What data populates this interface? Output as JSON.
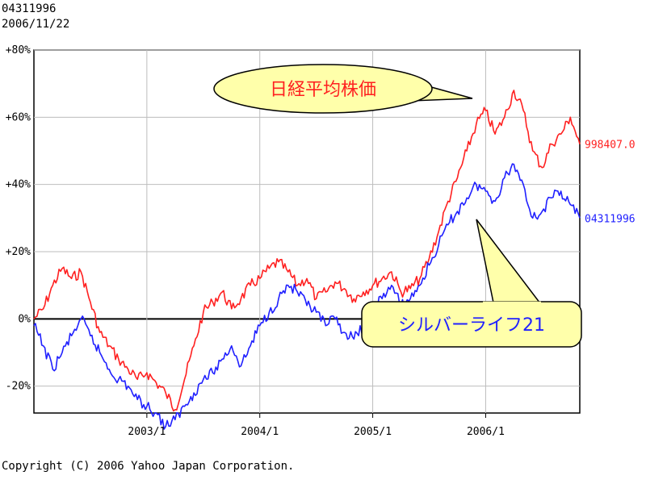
{
  "header": {
    "code": "04311996",
    "date": "2006/11/22"
  },
  "copyright": "Copyright (C) 2006 Yahoo Japan Corporation.",
  "chart_data": {
    "type": "line",
    "title": "",
    "xlabel": "",
    "ylabel": "",
    "ylim": [
      -28,
      80
    ],
    "y_ticks": [
      {
        "value": 80,
        "label": "+80%"
      },
      {
        "value": 60,
        "label": "+60%"
      },
      {
        "value": 40,
        "label": "+40%"
      },
      {
        "value": 20,
        "label": "+20%"
      },
      {
        "value": 0,
        "label": "0%"
      },
      {
        "value": -20,
        "label": "-20%"
      }
    ],
    "xlim": [
      "2002-01",
      "2006-11"
    ],
    "x_ticks": [
      {
        "value": "2003-01",
        "label": "2003/1"
      },
      {
        "value": "2004-01",
        "label": "2004/1"
      },
      {
        "value": "2005-01",
        "label": "2005/1"
      },
      {
        "value": "2006-01",
        "label": "2006/1"
      }
    ],
    "grid": true,
    "series": [
      {
        "name": "998407.0",
        "callout": "日経平均株価",
        "color": "#ff2020",
        "x": [
          "2002-01",
          "2002-02",
          "2002-03",
          "2002-04",
          "2002-05",
          "2002-06",
          "2002-07",
          "2002-08",
          "2002-09",
          "2002-10",
          "2002-11",
          "2002-12",
          "2003-01",
          "2003-02",
          "2003-03",
          "2003-04",
          "2003-05",
          "2003-06",
          "2003-07",
          "2003-08",
          "2003-09",
          "2003-10",
          "2003-11",
          "2003-12",
          "2004-01",
          "2004-02",
          "2004-03",
          "2004-04",
          "2004-05",
          "2004-06",
          "2004-07",
          "2004-08",
          "2004-09",
          "2004-10",
          "2004-11",
          "2004-12",
          "2005-01",
          "2005-02",
          "2005-03",
          "2005-04",
          "2005-05",
          "2005-06",
          "2005-07",
          "2005-08",
          "2005-09",
          "2005-10",
          "2005-11",
          "2005-12",
          "2006-01",
          "2006-02",
          "2006-03",
          "2006-04",
          "2006-05",
          "2006-06",
          "2006-07",
          "2006-08",
          "2006-09",
          "2006-10",
          "2006-11"
        ],
        "values": [
          0,
          3,
          10,
          15,
          12,
          14,
          5,
          -4,
          -8,
          -12,
          -15,
          -18,
          -16,
          -19,
          -22,
          -27,
          -18,
          -8,
          2,
          5,
          8,
          3,
          6,
          10,
          12,
          15,
          17,
          14,
          10,
          12,
          6,
          8,
          11,
          9,
          6,
          8,
          10,
          12,
          14,
          8,
          9,
          12,
          18,
          26,
          35,
          42,
          50,
          58,
          62,
          55,
          60,
          68,
          62,
          50,
          45,
          52,
          55,
          60,
          52
        ]
      },
      {
        "name": "04311996",
        "callout": "シルバーライフ21",
        "color": "#2020ff",
        "x": [
          "2002-01",
          "2002-02",
          "2002-03",
          "2002-04",
          "2002-05",
          "2002-06",
          "2002-07",
          "2002-08",
          "2002-09",
          "2002-10",
          "2002-11",
          "2002-12",
          "2003-01",
          "2003-02",
          "2003-03",
          "2003-04",
          "2003-05",
          "2003-06",
          "2003-07",
          "2003-08",
          "2003-09",
          "2003-10",
          "2003-11",
          "2003-12",
          "2004-01",
          "2004-02",
          "2004-03",
          "2004-04",
          "2004-05",
          "2004-06",
          "2004-07",
          "2004-08",
          "2004-09",
          "2004-10",
          "2004-11",
          "2004-12",
          "2005-01",
          "2005-02",
          "2005-03",
          "2005-04",
          "2005-05",
          "2005-06",
          "2005-07",
          "2005-08",
          "2005-09",
          "2005-10",
          "2005-11",
          "2005-12",
          "2006-01",
          "2006-02",
          "2006-03",
          "2006-04",
          "2006-05",
          "2006-06",
          "2006-07",
          "2006-08",
          "2006-09",
          "2006-10",
          "2006-11"
        ],
        "values": [
          -2,
          -8,
          -15,
          -10,
          -5,
          0,
          -5,
          -10,
          -15,
          -18,
          -20,
          -24,
          -26,
          -28,
          -32,
          -30,
          -26,
          -22,
          -18,
          -16,
          -12,
          -8,
          -14,
          -8,
          -2,
          2,
          6,
          10,
          8,
          4,
          2,
          -2,
          0,
          -4,
          -6,
          -2,
          4,
          6,
          10,
          4,
          6,
          10,
          16,
          22,
          28,
          32,
          36,
          40,
          38,
          35,
          42,
          46,
          40,
          30,
          32,
          36,
          38,
          34,
          30
        ]
      }
    ]
  }
}
